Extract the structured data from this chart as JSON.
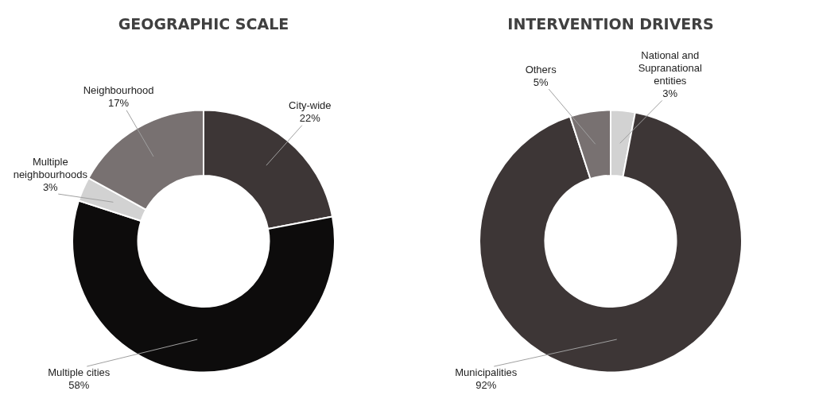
{
  "chart_data": [
    {
      "type": "donut",
      "title": "GEOGRAPHIC SCALE",
      "categories": [
        "City-wide",
        "Multiple cities",
        "Multiple neighbourhoods",
        "Neighbourhood"
      ],
      "values": [
        22,
        58,
        3,
        17
      ],
      "colors": [
        "#3d3636",
        "#0d0c0c",
        "#d2d2d2",
        "#787171"
      ],
      "value_labels": [
        "22%",
        "58%",
        "3%",
        "17%"
      ],
      "legend": false
    },
    {
      "type": "donut",
      "title": "INTERVENTION DRIVERS",
      "categories": [
        "National and Supranational entities",
        "Municipalities",
        "Others"
      ],
      "values": [
        3,
        92,
        5
      ],
      "colors": [
        "#d2d2d2",
        "#3d3636",
        "#787171"
      ],
      "value_labels": [
        "3%",
        "92%",
        "5%"
      ],
      "legend": false
    }
  ]
}
